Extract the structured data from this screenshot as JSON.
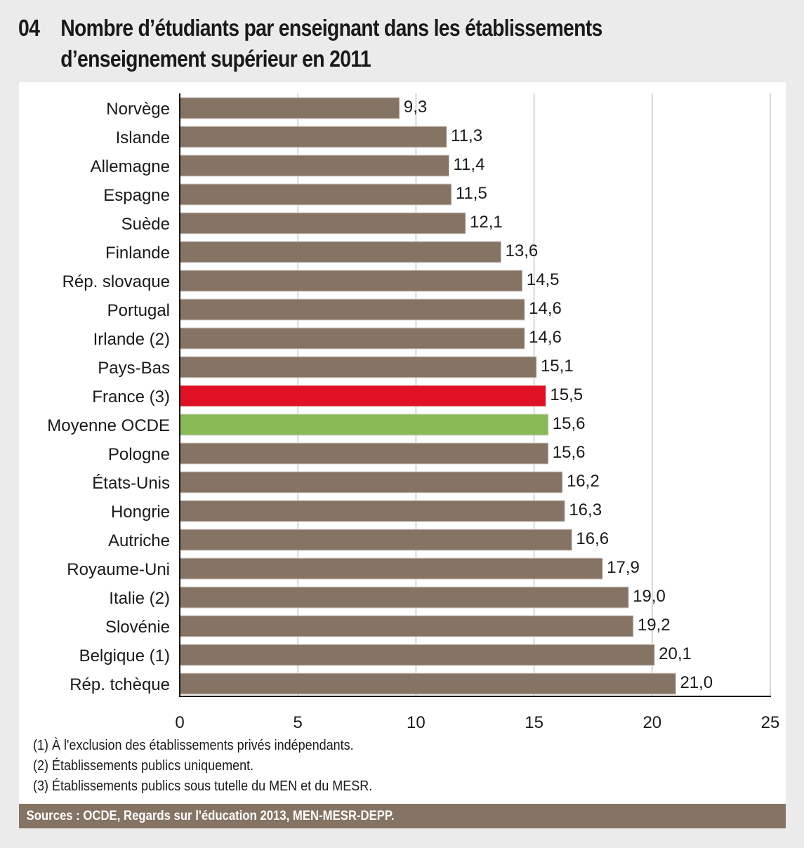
{
  "header": {
    "number": "04",
    "title_line1": "Nombre d’étudiants par enseignant dans les établissements",
    "title_line2": "d’enseignement supérieur en 2011"
  },
  "colors": {
    "bar_default": "#857464",
    "bar_france": "#e01025",
    "bar_oecd_average": "#88bb55",
    "gridline": "#c8c8c8",
    "axis": "#1a1a1a",
    "page_background": "#ebebeb",
    "panel_background": "#ffffff",
    "sources_band": "#857464"
  },
  "chart_data": {
    "type": "bar",
    "orientation": "horizontal",
    "title": "Nombre d’étudiants par enseignant dans les établissements d’enseignement supérieur en 2011",
    "xlabel": "",
    "ylabel": "",
    "xlim": [
      0,
      25
    ],
    "xticks": [
      0,
      5,
      10,
      15,
      20,
      25
    ],
    "xtick_labels": [
      "0",
      "5",
      "10",
      "15",
      "20",
      "25"
    ],
    "grid": true,
    "legend": null,
    "decimal_separator": ",",
    "categories": [
      "Norvège",
      "Islande",
      "Allemagne",
      "Espagne",
      "Suède",
      "Finlande",
      "Rép. slovaque",
      "Portugal",
      "Irlande (2)",
      "Pays-Bas",
      "France (3)",
      "Moyenne OCDE",
      "Pologne",
      "États-Unis",
      "Hongrie",
      "Autriche",
      "Royaume-Uni",
      "Italie (2)",
      "Slovénie",
      "Belgique (1)",
      "Rép. tchèque"
    ],
    "values": [
      9.3,
      11.3,
      11.4,
      11.5,
      12.1,
      13.6,
      14.5,
      14.6,
      14.6,
      15.1,
      15.5,
      15.6,
      15.6,
      16.2,
      16.3,
      16.6,
      17.9,
      19.0,
      19.2,
      20.1,
      21.0
    ],
    "value_labels": [
      "9,3",
      "11,3",
      "11,4",
      "11,5",
      "12,1",
      "13,6",
      "14,5",
      "14,6",
      "14,6",
      "15,1",
      "15,5",
      "15,6",
      "15,6",
      "16,2",
      "16,3",
      "16,6",
      "17,9",
      "19,0",
      "19,2",
      "20,1",
      "21,0"
    ],
    "highlights": {
      "France (3)": "bar_france",
      "Moyenne OCDE": "bar_oecd_average"
    }
  },
  "notes": [
    "(1) À l'exclusion des établissements privés indépendants.",
    "(2) Établissements publics uniquement.",
    "(3) Établissements publics sous tutelle du MEN et du MESR."
  ],
  "sources": "Sources : OCDE, Regards sur l'éducation 2013, MEN-MESR-DEPP."
}
